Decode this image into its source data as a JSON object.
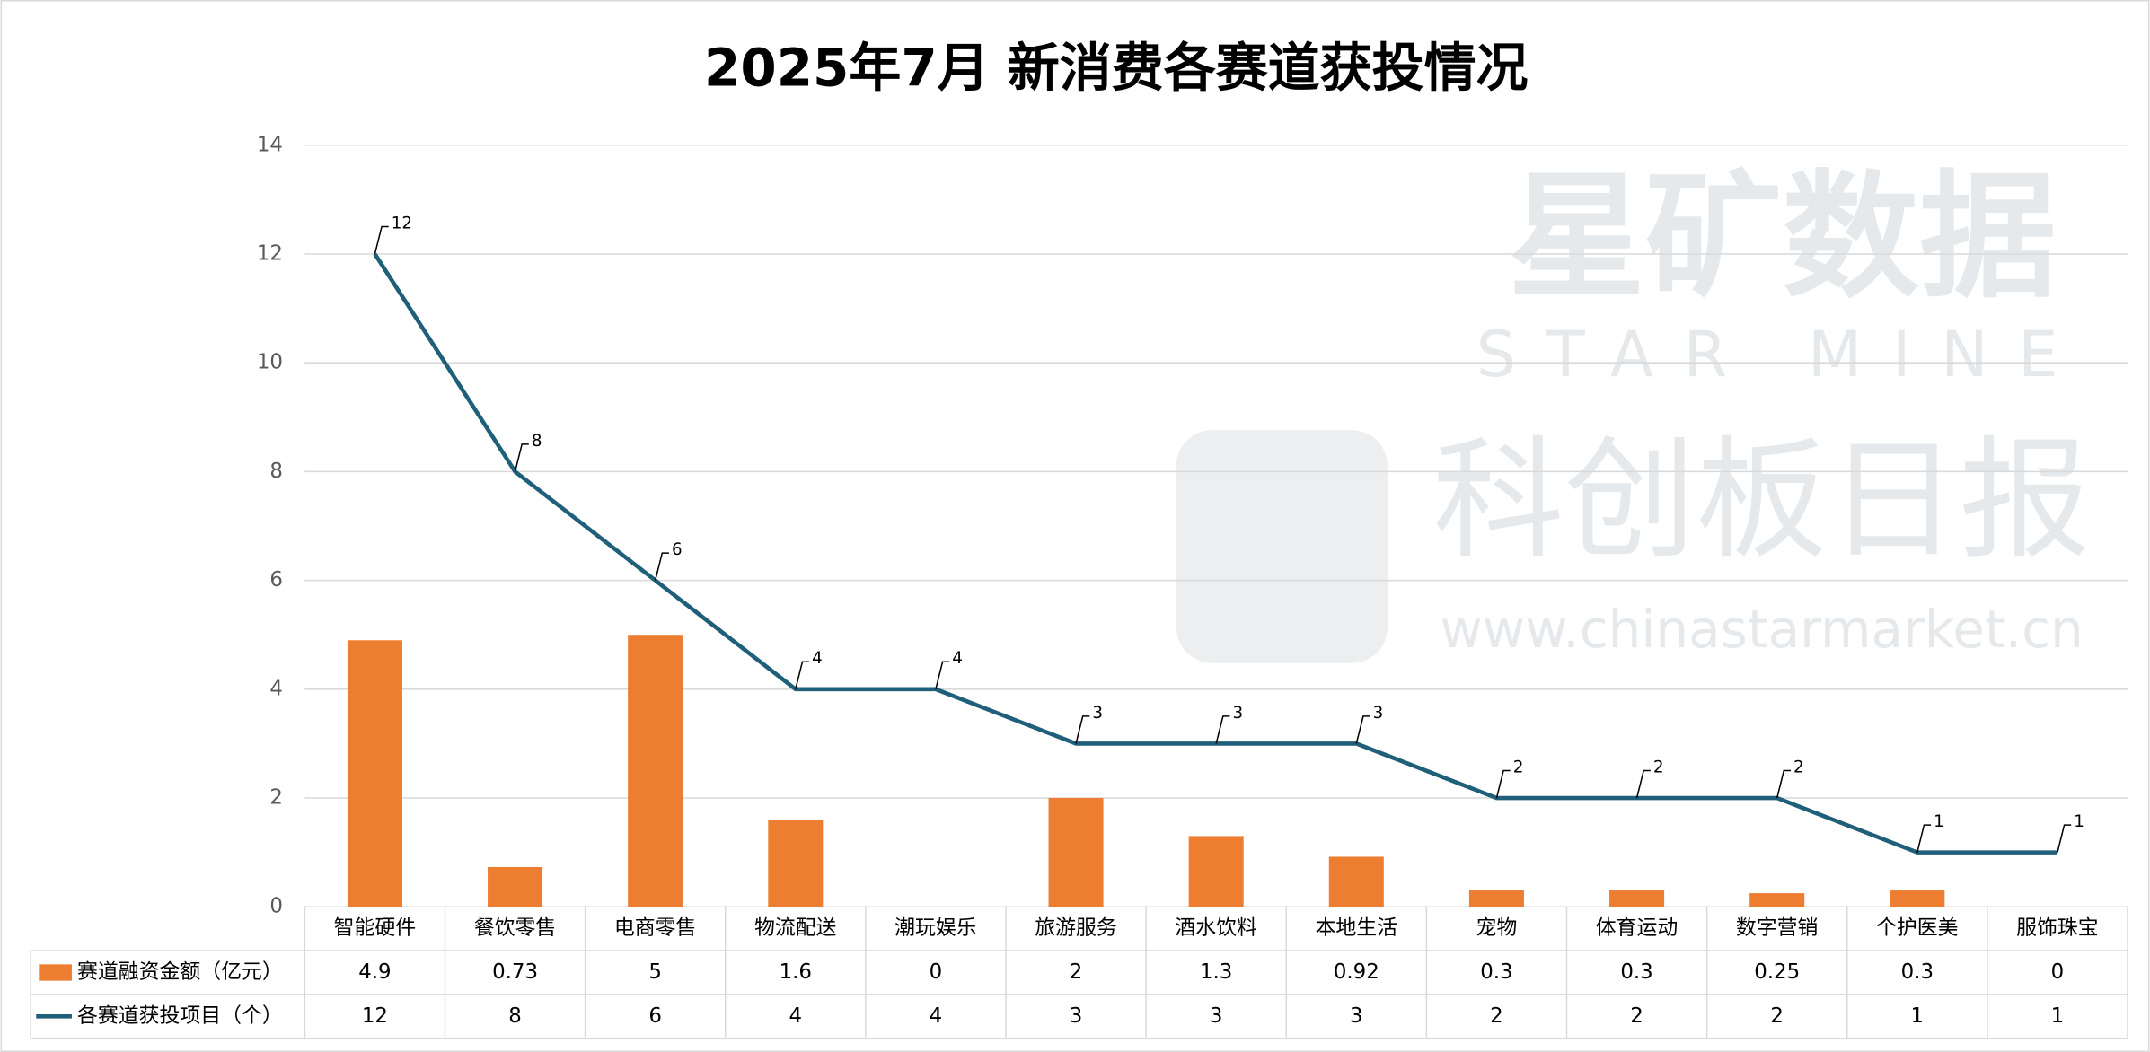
{
  "chart_data": {
    "type": "combo",
    "title": "2025年7月 新消费各赛道获投情况",
    "categories": [
      "智能硬件",
      "餐饮零售",
      "电商零售",
      "物流配送",
      "潮玩娱乐",
      "旅游服务",
      "酒水饮料",
      "本地生活",
      "宠物",
      "体育运动",
      "数字营销",
      "个护医美",
      "服饰珠宝"
    ],
    "series": [
      {
        "name": "赛道融资金额（亿元）",
        "type": "bar",
        "color": "#ed7d31",
        "values": [
          4.9,
          0.73,
          5,
          1.6,
          0,
          2,
          1.3,
          0.92,
          0.3,
          0.3,
          0.25,
          0.3,
          0
        ]
      },
      {
        "name": "各赛道获投项目（个）",
        "type": "line",
        "color": "#1f5f7a",
        "values": [
          12,
          8,
          6,
          4,
          4,
          3,
          3,
          3,
          2,
          2,
          2,
          1,
          1
        ]
      }
    ],
    "ylim": [
      0,
      14
    ],
    "yticks": [
      0,
      2,
      4,
      6,
      8,
      10,
      12,
      14
    ],
    "grid": true,
    "watermark": [
      "星矿数据",
      "STAR MINE",
      "科创板日报",
      "www.chinastarmarket.cn"
    ]
  }
}
